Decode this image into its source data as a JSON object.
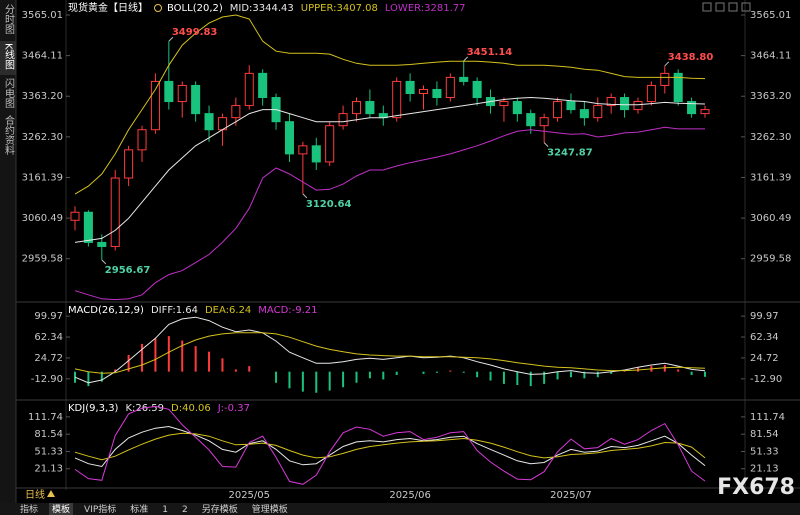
{
  "sidebar_tabs": [
    "分时图",
    "K线图",
    "闪电图",
    "合约资料"
  ],
  "chart_data": [
    {
      "type": "candlestick",
      "title": "现货黄金【日线】",
      "indicator": "BOLL(20,2)",
      "categories": [
        null,
        null,
        null,
        null,
        null,
        null,
        null,
        null,
        null,
        null,
        null,
        null,
        null,
        "2025/05",
        null,
        null,
        null,
        null,
        null,
        null,
        null,
        null,
        null,
        null,
        null,
        "2025/06",
        null,
        null,
        null,
        null,
        null,
        null,
        null,
        null,
        null,
        null,
        null,
        "2025/07",
        null,
        null,
        null,
        null,
        null,
        null,
        null,
        null,
        null,
        null
      ],
      "open": [
        3055,
        3075,
        3000,
        2990,
        3160,
        3230,
        3280,
        3400,
        3350,
        3390,
        3320,
        3280,
        3310,
        3340,
        3420,
        3360,
        3300,
        3220,
        3240,
        3200,
        3290,
        3320,
        3350,
        3320,
        3310,
        3400,
        3370,
        3380,
        3360,
        3410,
        3400,
        3360,
        3340,
        3350,
        3320,
        3290,
        3310,
        3350,
        3330,
        3310,
        3340,
        3360,
        3330,
        3350,
        3390,
        3420,
        3350,
        3320
      ],
      "high": [
        3090,
        3080,
        3020,
        3180,
        3240,
        3290,
        3420,
        3499.83,
        3400,
        3400,
        3340,
        3320,
        3360,
        3440,
        3430,
        3370,
        3320,
        3250,
        3260,
        3300,
        3340,
        3360,
        3380,
        3340,
        3410,
        3420,
        3390,
        3400,
        3420,
        3451.14,
        3410,
        3380,
        3360,
        3360,
        3330,
        3320,
        3360,
        3370,
        3350,
        3360,
        3370,
        3370,
        3360,
        3400,
        3438.8,
        3430,
        3360,
        3340
      ],
      "low": [
        3030,
        2990,
        2956.67,
        2980,
        3140,
        3200,
        3270,
        3330,
        3310,
        3300,
        3250,
        3240,
        3290,
        3330,
        3340,
        3280,
        3200,
        3120.64,
        3180,
        3190,
        3280,
        3300,
        3310,
        3290,
        3300,
        3350,
        3330,
        3340,
        3350,
        3390,
        3340,
        3320,
        3300,
        3300,
        3270,
        3247.87,
        3300,
        3320,
        3290,
        3300,
        3320,
        3310,
        3320,
        3340,
        3370,
        3340,
        3310,
        3310
      ],
      "close": [
        3075,
        3000,
        2990,
        3160,
        3230,
        3280,
        3400,
        3350,
        3390,
        3320,
        3280,
        3310,
        3340,
        3420,
        3360,
        3300,
        3220,
        3240,
        3200,
        3290,
        3320,
        3350,
        3320,
        3310,
        3400,
        3370,
        3380,
        3360,
        3410,
        3400,
        3360,
        3340,
        3350,
        3320,
        3290,
        3310,
        3350,
        3330,
        3310,
        3340,
        3360,
        3330,
        3350,
        3390,
        3420,
        3350,
        3320,
        3330
      ],
      "high_labels": [
        null,
        null,
        null,
        null,
        null,
        null,
        null,
        "3499.83",
        null,
        null,
        null,
        null,
        null,
        null,
        null,
        null,
        null,
        null,
        null,
        null,
        null,
        null,
        null,
        null,
        null,
        null,
        null,
        null,
        null,
        "3451.14",
        null,
        null,
        null,
        null,
        null,
        null,
        null,
        null,
        null,
        null,
        null,
        null,
        null,
        null,
        "3438.80",
        null,
        null,
        null
      ],
      "low_labels": [
        null,
        null,
        "2956.67",
        null,
        null,
        null,
        null,
        null,
        null,
        null,
        null,
        null,
        null,
        null,
        null,
        null,
        null,
        "3120.64",
        null,
        null,
        null,
        null,
        null,
        null,
        null,
        null,
        null,
        null,
        null,
        null,
        null,
        null,
        null,
        null,
        null,
        "3247.87",
        null,
        null,
        null,
        null,
        null,
        null,
        null,
        null,
        null,
        null,
        null,
        null
      ],
      "high_label_color": "#ff4d4d",
      "low_label_color": "#4fd1a5",
      "up_color": "#ff3b3b",
      "down_color": "#19c37d",
      "series": [
        {
          "name": "MID:3344.43",
          "color": "#e8e8e8",
          "values": [
            3000,
            3005,
            3010,
            3030,
            3060,
            3100,
            3140,
            3180,
            3210,
            3240,
            3260,
            3280,
            3300,
            3320,
            3330,
            3330,
            3320,
            3310,
            3300,
            3300,
            3300,
            3305,
            3310,
            3310,
            3315,
            3320,
            3325,
            3330,
            3335,
            3340,
            3345,
            3350,
            3355,
            3358,
            3360,
            3358,
            3355,
            3352,
            3350,
            3345,
            3343,
            3342,
            3342,
            3345,
            3348,
            3346,
            3345,
            3344
          ]
        },
        {
          "name": "UPPER:3407.08",
          "color": "#d4c21c",
          "values": [
            3120,
            3140,
            3170,
            3220,
            3280,
            3330,
            3380,
            3440,
            3490,
            3520,
            3545,
            3560,
            3565,
            3555,
            3500,
            3475,
            3470,
            3470,
            3470,
            3468,
            3455,
            3445,
            3440,
            3440,
            3440,
            3442,
            3445,
            3448,
            3450,
            3450,
            3450,
            3448,
            3445,
            3440,
            3440,
            3440,
            3438,
            3435,
            3430,
            3428,
            3420,
            3412,
            3410,
            3410,
            3410,
            3410,
            3408,
            3407
          ]
        },
        {
          "name": "LOWER:3281.77",
          "color": "#c030c8",
          "values": [
            2880,
            2870,
            2860,
            2858,
            2860,
            2870,
            2900,
            2920,
            2930,
            2950,
            2970,
            3000,
            3035,
            3085,
            3160,
            3185,
            3170,
            3150,
            3130,
            3132,
            3145,
            3165,
            3180,
            3180,
            3190,
            3198,
            3205,
            3212,
            3220,
            3230,
            3240,
            3252,
            3265,
            3276,
            3280,
            3276,
            3272,
            3269,
            3270,
            3262,
            3266,
            3272,
            3274,
            3280,
            3286,
            3282,
            3282,
            3282
          ]
        }
      ],
      "ylim": [
        2857,
        3565.01
      ],
      "yticks": [
        3565.01,
        3464.11,
        {
          "value": 3363.2,
          "label": "3363.20"
        },
        {
          "value": 3262.3,
          "label": "3262.30"
        },
        3161.39,
        3060.49,
        2959.58
      ],
      "grid": false
    },
    {
      "type": "macd",
      "title": "MACD(26,12,9)",
      "series": [
        {
          "name": "DIFF:1.64",
          "color": "#e8e8e8",
          "values": [
            -10,
            -20,
            -15,
            0,
            20,
            40,
            60,
            85,
            95,
            98,
            92,
            80,
            72,
            75,
            70,
            55,
            35,
            25,
            15,
            15,
            18,
            22,
            24,
            22,
            25,
            28,
            25,
            26,
            28,
            25,
            18,
            12,
            5,
            0,
            -5,
            -4,
            0,
            2,
            -2,
            -3,
            0,
            3,
            8,
            12,
            15,
            10,
            4,
            1.64
          ]
        },
        {
          "name": "DEA:6.24",
          "color": "#d4c21c",
          "values": [
            5,
            0,
            -3,
            -2,
            5,
            12,
            22,
            35,
            47,
            57,
            64,
            68,
            70,
            70,
            70,
            68,
            62,
            54,
            46,
            40,
            36,
            32,
            30,
            29,
            28,
            28,
            27,
            27,
            27,
            26,
            25,
            23,
            20,
            16,
            13,
            10,
            8,
            7,
            5,
            3,
            2,
            2,
            3,
            5,
            7,
            8,
            7,
            6.24
          ]
        },
        {
          "name": "MACD:-9.21",
          "color": "#d63ad6",
          "style": "bar",
          "up_color": "#ff3b3b",
          "down_color": "#19c37d",
          "values": [
            -20,
            -26,
            -18,
            4,
            30,
            50,
            60,
            64,
            56,
            46,
            36,
            24,
            4,
            10,
            0,
            -20,
            -30,
            -36,
            -38,
            -34,
            -28,
            -20,
            -12,
            -14,
            -6,
            0,
            -4,
            -2,
            2,
            -2,
            -10,
            -16,
            -22,
            -24,
            -26,
            -22,
            -14,
            -10,
            -12,
            -10,
            -4,
            2,
            8,
            10,
            12,
            4,
            -6,
            -9.21
          ]
        }
      ],
      "ylim": [
        -42,
        120
      ],
      "yticks": [
        99.97,
        62.34,
        24.72,
        {
          "value": -12.9,
          "label": "-12.90"
        }
      ],
      "grid": false
    },
    {
      "type": "line",
      "title": "KDJ(9,3,3)",
      "series": [
        {
          "name": "K:26.59",
          "color": "#e8e8e8",
          "values": [
            40,
            30,
            25,
            55,
            75,
            85,
            92,
            95,
            88,
            80,
            70,
            55,
            50,
            65,
            70,
            55,
            35,
            28,
            30,
            45,
            60,
            68,
            70,
            68,
            72,
            74,
            70,
            72,
            76,
            78,
            65,
            55,
            45,
            35,
            30,
            32,
            45,
            55,
            50,
            52,
            60,
            58,
            62,
            70,
            78,
            65,
            45,
            26.59
          ]
        },
        {
          "name": "D:40.06",
          "color": "#d4c21c",
          "values": [
            50,
            43,
            37,
            43,
            54,
            64,
            73,
            80,
            83,
            82,
            78,
            70,
            63,
            64,
            66,
            62,
            53,
            45,
            40,
            42,
            48,
            55,
            60,
            63,
            66,
            68,
            69,
            70,
            72,
            74,
            71,
            66,
            59,
            51,
            44,
            40,
            42,
            46,
            47,
            49,
            53,
            55,
            57,
            61,
            67,
            66,
            59,
            40.06
          ]
        },
        {
          "name": "J:-0.37",
          "color": "#d63ad6",
          "values": [
            20,
            4,
            1,
            79,
            117,
            127,
            130,
            125,
            98,
            76,
            54,
            25,
            24,
            67,
            78,
            41,
            -1,
            -6,
            10,
            51,
            84,
            94,
            90,
            78,
            84,
            86,
            72,
            76,
            84,
            86,
            53,
            33,
            17,
            3,
            2,
            16,
            51,
            73,
            56,
            58,
            74,
            64,
            72,
            88,
            100,
            63,
            17,
            -0.37
          ]
        }
      ],
      "ylim": [
        -16,
        136
      ],
      "yticks": [
        111.74,
        81.54,
        51.33,
        21.13
      ],
      "grid": false
    }
  ],
  "period_label": "日线",
  "toolbar": [
    "指标",
    "模板",
    "VIP指标",
    "标准",
    "1",
    "2",
    "另存模板",
    "管理模板"
  ],
  "watermark": "FX678"
}
